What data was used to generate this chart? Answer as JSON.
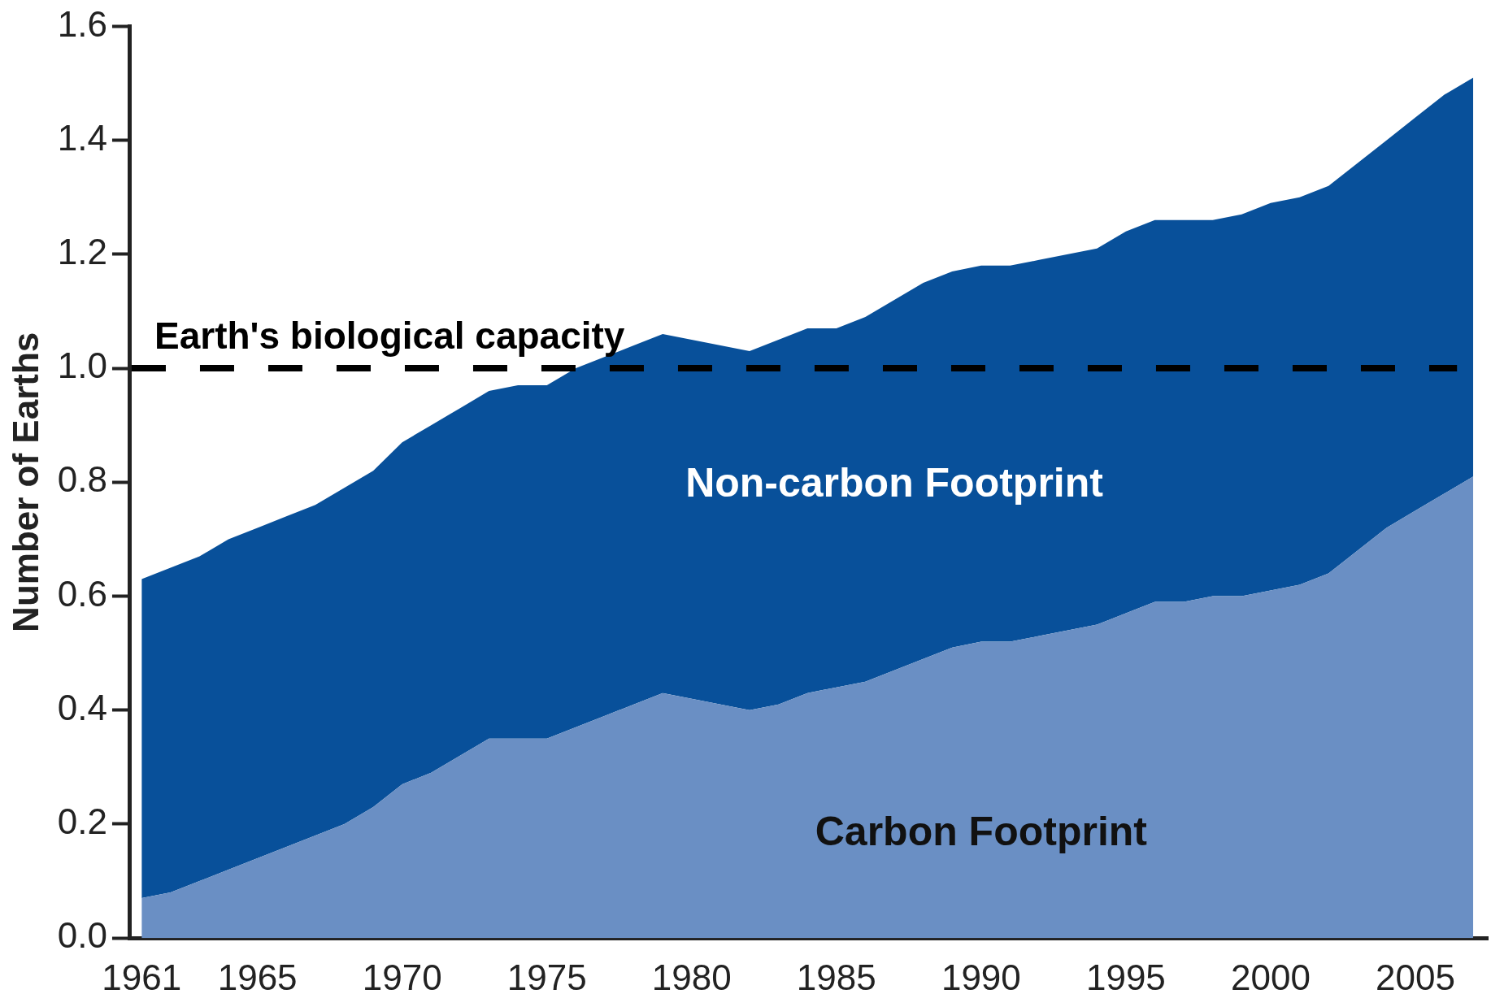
{
  "chart_data": {
    "type": "area",
    "stacked": true,
    "ylabel": "Number of Earths",
    "x": [
      1961,
      1962,
      1963,
      1964,
      1965,
      1966,
      1967,
      1968,
      1969,
      1970,
      1971,
      1972,
      1973,
      1974,
      1975,
      1976,
      1977,
      1978,
      1979,
      1980,
      1981,
      1982,
      1983,
      1984,
      1985,
      1986,
      1987,
      1988,
      1989,
      1990,
      1991,
      1992,
      1993,
      1994,
      1995,
      1996,
      1997,
      1998,
      1999,
      2000,
      2001,
      2002,
      2003,
      2004,
      2005,
      2006,
      2007
    ],
    "series": [
      {
        "name": "Carbon Footprint",
        "color": "#6a8fc4",
        "values": [
          0.07,
          0.08,
          0.1,
          0.12,
          0.14,
          0.16,
          0.18,
          0.2,
          0.23,
          0.27,
          0.29,
          0.32,
          0.35,
          0.35,
          0.35,
          0.37,
          0.39,
          0.41,
          0.43,
          0.42,
          0.41,
          0.4,
          0.41,
          0.43,
          0.44,
          0.45,
          0.47,
          0.49,
          0.51,
          0.52,
          0.52,
          0.53,
          0.54,
          0.55,
          0.57,
          0.59,
          0.59,
          0.6,
          0.6,
          0.61,
          0.62,
          0.64,
          0.68,
          0.72,
          0.75,
          0.78,
          0.81
        ]
      },
      {
        "name": "Non-carbon Footprint",
        "color": "#08509a",
        "values": [
          0.56,
          0.57,
          0.57,
          0.58,
          0.58,
          0.58,
          0.58,
          0.59,
          0.59,
          0.6,
          0.61,
          0.61,
          0.61,
          0.62,
          0.62,
          0.63,
          0.63,
          0.63,
          0.63,
          0.63,
          0.63,
          0.63,
          0.64,
          0.64,
          0.63,
          0.64,
          0.65,
          0.66,
          0.66,
          0.66,
          0.66,
          0.66,
          0.66,
          0.66,
          0.67,
          0.67,
          0.67,
          0.66,
          0.67,
          0.68,
          0.68,
          0.68,
          0.68,
          0.68,
          0.69,
          0.7,
          0.7
        ]
      }
    ],
    "xlim": [
      1960.6,
      2007.5
    ],
    "xticks": [
      1961,
      1965,
      1970,
      1975,
      1980,
      1985,
      1990,
      1995,
      2000,
      2005
    ],
    "ylim": [
      0,
      1.6
    ],
    "yticks": [
      {
        "value": 0,
        "label": "0.0"
      },
      {
        "value": 0.2,
        "label": "0.2"
      },
      {
        "value": 0.4,
        "label": "0.4"
      },
      {
        "value": 0.6,
        "label": "0.6"
      },
      {
        "value": 0.8,
        "label": "0.8"
      },
      {
        "value": 1,
        "label": "1.0"
      },
      {
        "value": 1.2,
        "label": "1.2"
      },
      {
        "value": 1.4,
        "label": "1.4"
      },
      {
        "value": 1.6,
        "label": "1.6"
      }
    ],
    "ref_lines": [
      {
        "axis": "y",
        "value": 1,
        "label": "Earth's biological capacity",
        "color": "#000000",
        "line_style": "dashed"
      }
    ],
    "grid": false,
    "legend": false
  }
}
